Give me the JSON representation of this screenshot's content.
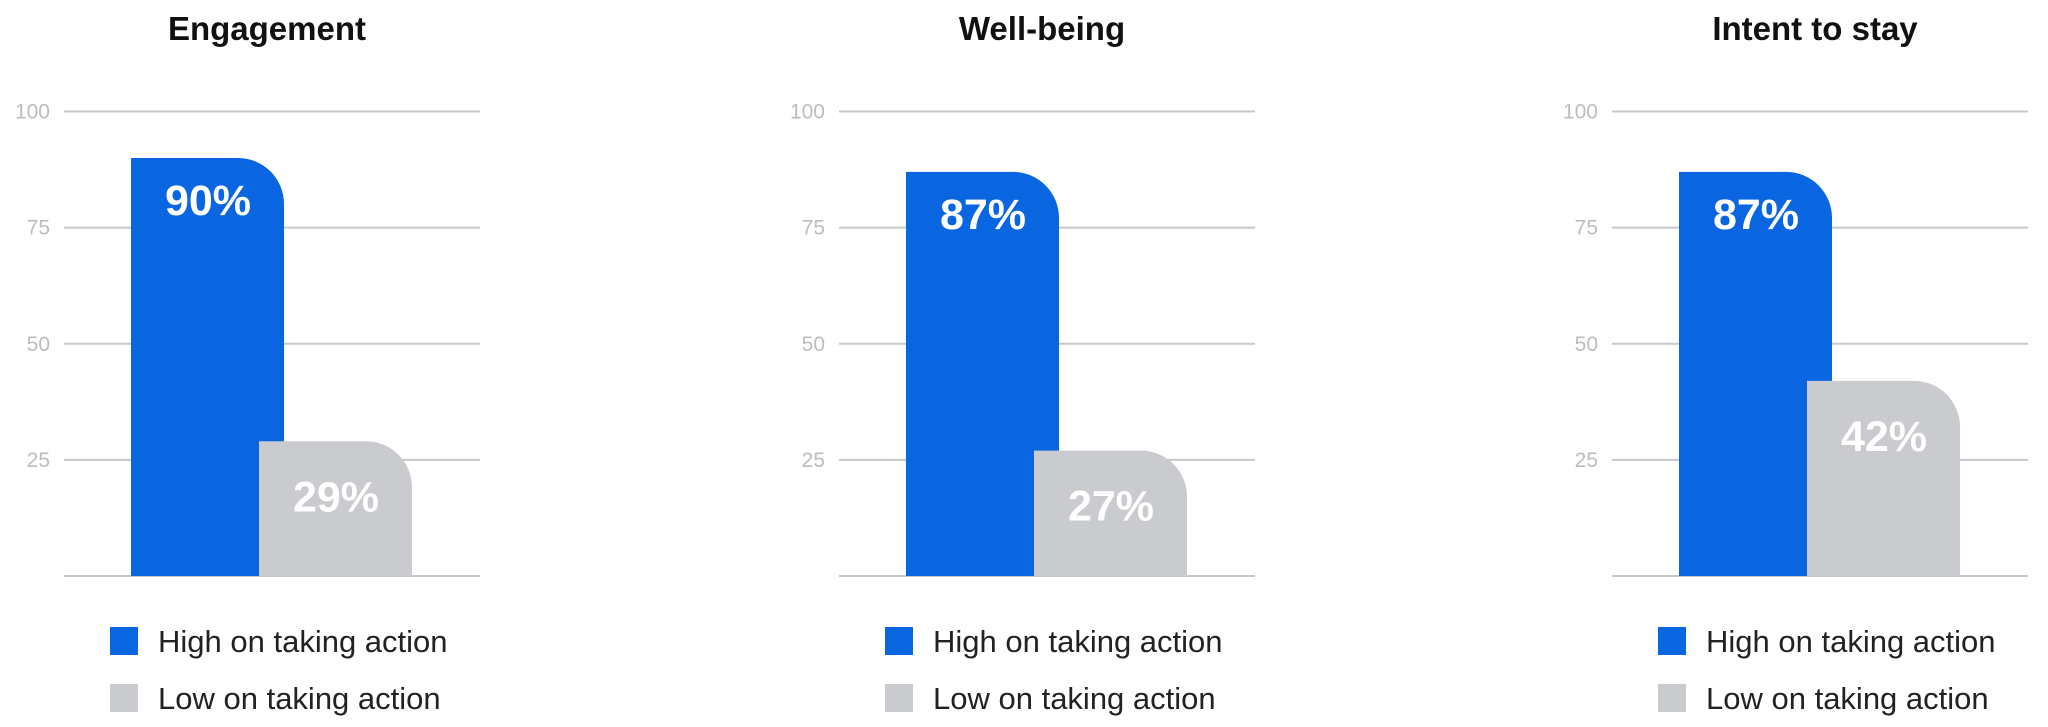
{
  "colors": {
    "high": "#0a66e0",
    "low": "#c9cbce",
    "grid": "#c8c8c8",
    "tick_text": "#bdbdbd",
    "title_text": "#111111",
    "legend_text": "#222222",
    "value_text": "#ffffff"
  },
  "chart_data": [
    {
      "type": "bar",
      "title": "Engagement",
      "ylim": [
        0,
        100
      ],
      "yticks": [
        25,
        50,
        75,
        100
      ],
      "grid": true,
      "legend_position": "bottom",
      "series": [
        {
          "name": "High on taking action",
          "value": 90,
          "label": "90%",
          "color_key": "high"
        },
        {
          "name": "Low on taking action",
          "value": 29,
          "label": "29%",
          "color_key": "low"
        }
      ]
    },
    {
      "type": "bar",
      "title": "Well-being",
      "ylim": [
        0,
        100
      ],
      "yticks": [
        25,
        50,
        75,
        100
      ],
      "grid": true,
      "legend_position": "bottom",
      "series": [
        {
          "name": "High on taking action",
          "value": 87,
          "label": "87%",
          "color_key": "high"
        },
        {
          "name": "Low on taking action",
          "value": 27,
          "label": "27%",
          "color_key": "low"
        }
      ]
    },
    {
      "type": "bar",
      "title": "Intent to stay",
      "ylim": [
        0,
        100
      ],
      "yticks": [
        25,
        50,
        75,
        100
      ],
      "grid": true,
      "legend_position": "bottom",
      "series": [
        {
          "name": "High on taking action",
          "value": 87,
          "label": "87%",
          "color_key": "high"
        },
        {
          "name": "Low on taking action",
          "value": 42,
          "label": "42%",
          "color_key": "low"
        }
      ]
    }
  ]
}
